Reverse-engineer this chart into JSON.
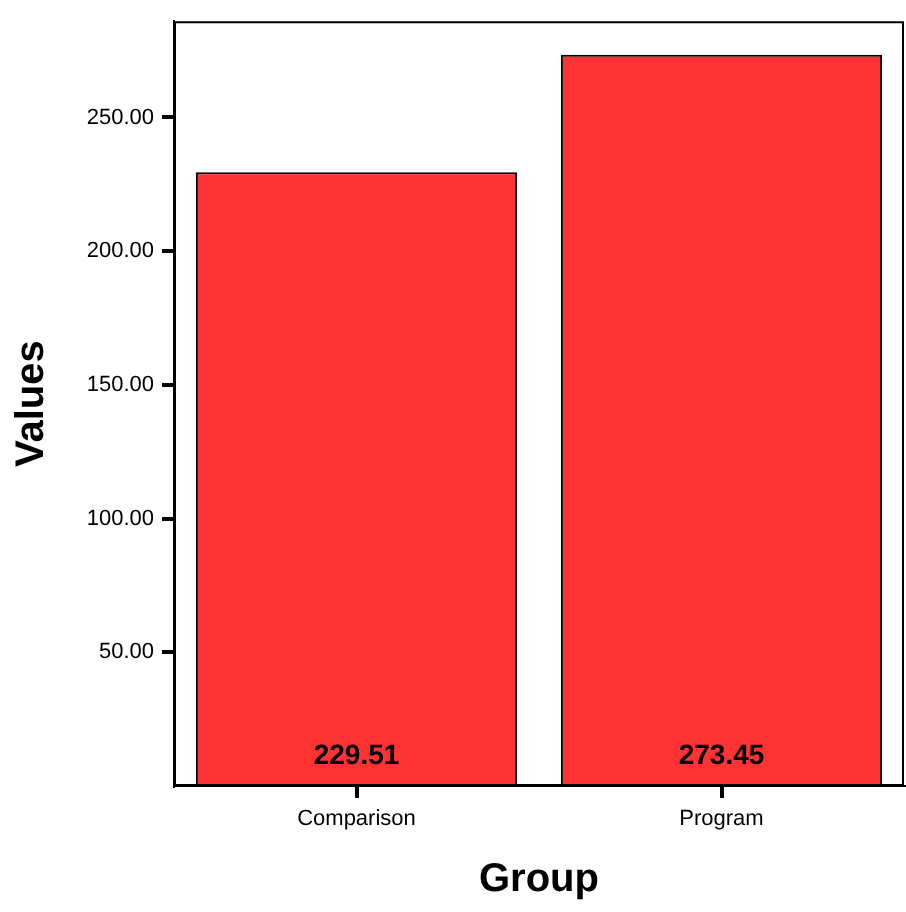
{
  "chart_data": {
    "type": "bar",
    "xlabel": "Group",
    "ylabel": "Values",
    "categories": [
      "Comparison",
      "Program"
    ],
    "values": [
      229.51,
      273.45
    ],
    "color": "#ff3333",
    "ylim": [
      0,
      286
    ],
    "yticks": [
      {
        "value": 50,
        "label": "50.00"
      },
      {
        "value": 100,
        "label": "100.00"
      },
      {
        "value": 150,
        "label": "150.00"
      },
      {
        "value": 200,
        "label": "200.00"
      },
      {
        "value": 250,
        "label": "250.00"
      }
    ],
    "data_labels": true,
    "grid": false,
    "legend": false
  }
}
